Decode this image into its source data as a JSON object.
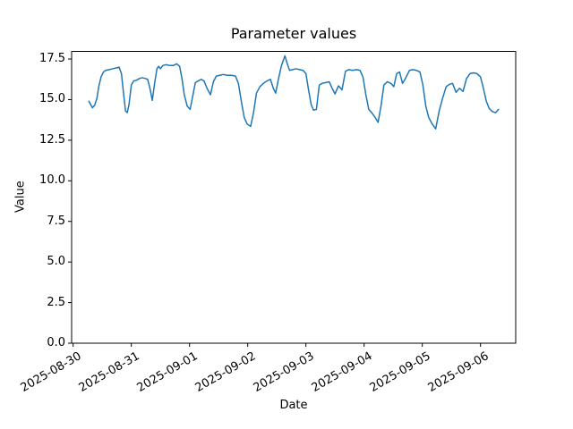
{
  "chart_data": {
    "type": "line",
    "title": "Parameter values",
    "xlabel": "Date",
    "ylabel": "Value",
    "grid": false,
    "legend": "none",
    "line_color": "#1f77b4",
    "background_color": "#ffffff",
    "ylim": [
      0.0,
      17.97
    ],
    "y_ticks": [
      0.0,
      2.5,
      5.0,
      7.5,
      10.0,
      12.5,
      15.0,
      17.5
    ],
    "y_tick_labels": [
      "0.0",
      "2.5",
      "5.0",
      "7.5",
      "10.0",
      "12.5",
      "15.0",
      "17.5"
    ],
    "x_epoch": "2025-08-30",
    "xlim_days": [
      -0.026,
      7.605
    ],
    "x_ticks_days": [
      0,
      1,
      2,
      3,
      4,
      5,
      6,
      7
    ],
    "x_tick_labels": [
      "2025-08-30",
      "2025-08-31",
      "2025-09-01",
      "2025-09-02",
      "2025-09-03",
      "2025-09-04",
      "2025-09-05",
      "2025-09-06"
    ],
    "series": [
      {
        "name": "Parameter values",
        "x_days": [
          0.27,
          0.3,
          0.33,
          0.37,
          0.41,
          0.44,
          0.48,
          0.52,
          0.56,
          0.62,
          0.68,
          0.74,
          0.79,
          0.83,
          0.86,
          0.9,
          0.93,
          0.96,
          1.0,
          1.04,
          1.09,
          1.14,
          1.19,
          1.24,
          1.28,
          1.32,
          1.36,
          1.4,
          1.44,
          1.47,
          1.5,
          1.54,
          1.6,
          1.66,
          1.72,
          1.78,
          1.83,
          1.87,
          1.91,
          1.96,
          2.01,
          2.06,
          2.1,
          2.15,
          2.2,
          2.25,
          2.3,
          2.36,
          2.41,
          2.46,
          2.52,
          2.58,
          2.65,
          2.72,
          2.79,
          2.84,
          2.89,
          2.94,
          2.99,
          3.05,
          3.1,
          3.15,
          3.21,
          3.27,
          3.33,
          3.39,
          3.44,
          3.48,
          3.53,
          3.58,
          3.64,
          3.68,
          3.72,
          3.77,
          3.83,
          3.89,
          3.95,
          4.0,
          4.05,
          4.09,
          4.13,
          4.18,
          4.23,
          4.28,
          4.34,
          4.4,
          4.45,
          4.5,
          4.56,
          4.62,
          4.68,
          4.74,
          4.8,
          4.87,
          4.93,
          4.98,
          5.03,
          5.08,
          5.13,
          5.19,
          5.24,
          5.29,
          5.34,
          5.4,
          5.46,
          5.51,
          5.56,
          5.61,
          5.66,
          5.71,
          5.78,
          5.84,
          5.9,
          5.96,
          6.01,
          6.06,
          6.11,
          6.17,
          6.23,
          6.29,
          6.35,
          6.41,
          6.47,
          6.52,
          6.58,
          6.64,
          6.7,
          6.76,
          6.82,
          6.88,
          6.94,
          7.0,
          7.05,
          7.1,
          7.15,
          7.21,
          7.26,
          7.31
        ],
        "values": [
          14.9,
          14.7,
          14.5,
          14.65,
          15.1,
          15.8,
          16.4,
          16.7,
          16.8,
          16.85,
          16.9,
          16.95,
          17.0,
          16.6,
          15.6,
          14.3,
          14.2,
          14.7,
          15.9,
          16.15,
          16.2,
          16.3,
          16.35,
          16.3,
          16.25,
          15.7,
          14.95,
          16.0,
          16.9,
          17.05,
          16.9,
          17.1,
          17.15,
          17.1,
          17.1,
          17.2,
          17.05,
          16.3,
          15.3,
          14.6,
          14.4,
          15.3,
          16.05,
          16.15,
          16.25,
          16.15,
          15.7,
          15.3,
          16.1,
          16.45,
          16.5,
          16.55,
          16.5,
          16.5,
          16.45,
          16.0,
          14.9,
          13.9,
          13.5,
          13.35,
          14.2,
          15.4,
          15.8,
          16.0,
          16.15,
          16.25,
          15.7,
          15.4,
          16.3,
          17.1,
          17.7,
          17.2,
          16.8,
          16.85,
          16.9,
          16.85,
          16.8,
          16.6,
          15.5,
          14.7,
          14.35,
          14.4,
          15.9,
          16.0,
          16.05,
          16.1,
          15.7,
          15.35,
          15.85,
          15.6,
          16.75,
          16.85,
          16.8,
          16.85,
          16.8,
          16.4,
          15.3,
          14.4,
          14.2,
          13.9,
          13.6,
          14.6,
          15.9,
          16.1,
          16.0,
          15.8,
          16.6,
          16.7,
          16.0,
          16.3,
          16.8,
          16.85,
          16.8,
          16.7,
          15.9,
          14.6,
          13.9,
          13.5,
          13.2,
          14.3,
          15.1,
          15.8,
          15.95,
          16.0,
          15.45,
          15.7,
          15.5,
          16.3,
          16.6,
          16.65,
          16.6,
          16.4,
          15.7,
          14.9,
          14.45,
          14.25,
          14.2,
          14.4
        ]
      }
    ]
  }
}
